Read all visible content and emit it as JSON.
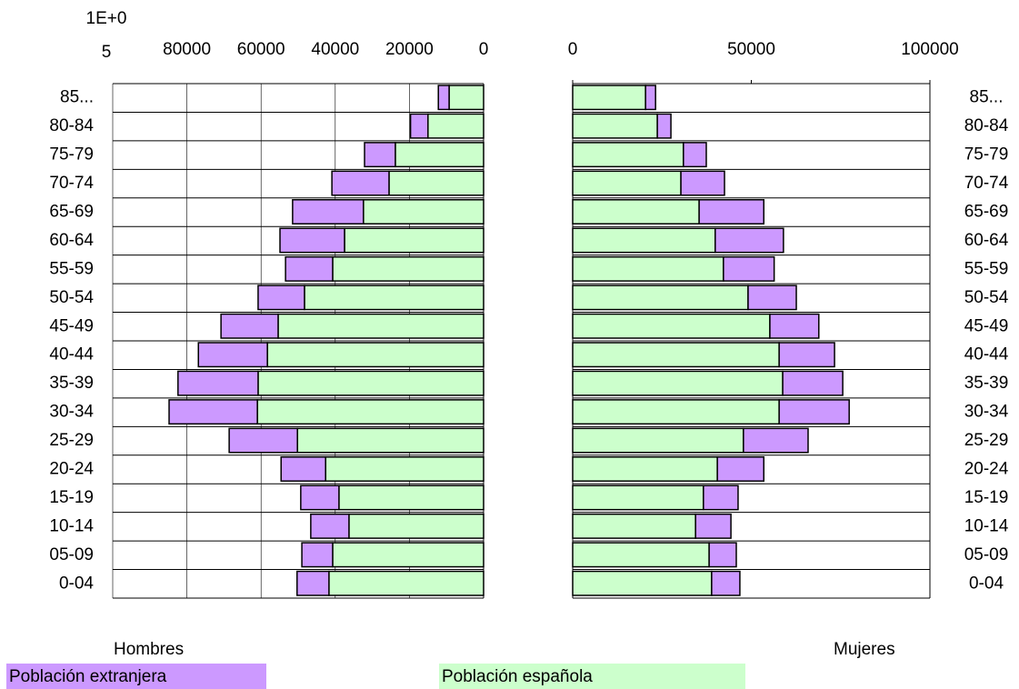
{
  "chart_data": {
    "type": "pyramid",
    "categories": [
      "0-04",
      "05-09",
      "10-14",
      "15-19",
      "20-24",
      "25-29",
      "30-34",
      "35-39",
      "40-44",
      "45-49",
      "50-54",
      "55-59",
      "60-64",
      "65-69",
      "70-74",
      "75-79",
      "80-84",
      "85..."
    ],
    "panels": [
      {
        "label": "Hombres",
        "side": "left",
        "xlim": [
          0,
          100000
        ],
        "xticks": [
          {
            "value": 100000,
            "label": "1E+05"
          },
          80000,
          60000,
          40000,
          20000,
          0
        ],
        "grid": true
      },
      {
        "label": "Mujeres",
        "side": "right",
        "xlim": [
          0,
          100000
        ],
        "xticks": [
          0,
          50000,
          100000
        ],
        "grid": false
      }
    ],
    "series": [
      {
        "name": "Población española",
        "color": "#ccffcc",
        "values": [
          41700,
          40700,
          36300,
          39000,
          42600,
          50200,
          61000,
          60800,
          58300,
          55400,
          48300,
          40700,
          37500,
          32400,
          25500,
          23800,
          15000,
          9300
        ],
        "values_right": [
          38900,
          38200,
          34400,
          36600,
          40500,
          47800,
          57800,
          58800,
          57800,
          55200,
          49100,
          42200,
          39900,
          35400,
          30300,
          31000,
          23700,
          20400
        ]
      },
      {
        "name": "Población extranjera",
        "color": "#cc99ff",
        "values": [
          8600,
          8300,
          10300,
          10300,
          12000,
          18400,
          23800,
          21600,
          18600,
          15400,
          12500,
          12700,
          17400,
          19100,
          15400,
          8300,
          4700,
          2900
        ],
        "values_right": [
          7900,
          7600,
          9900,
          9700,
          13000,
          18100,
          19600,
          16800,
          15500,
          13700,
          13500,
          14200,
          19100,
          18100,
          12200,
          6400,
          3800,
          2800
        ]
      }
    ]
  }
}
